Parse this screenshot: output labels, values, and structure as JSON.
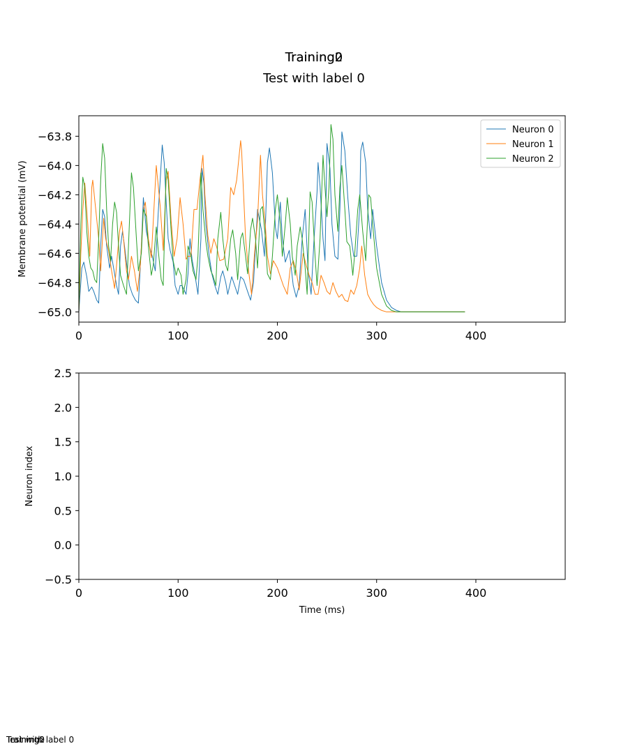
{
  "figure": {
    "title_overlap_a": "Training0",
    "title_overlap_b": "Training2",
    "subtitle": "Test with label 0",
    "footer_overlap_a": "Training0",
    "footer_overlap_b": "Training2",
    "footer_overlap_c": "Test with label 0"
  },
  "chart_data": [
    {
      "type": "line",
      "title": "",
      "xlabel": "",
      "ylabel": "Membrane potential (mV)",
      "xlim": [
        0,
        490
      ],
      "ylim": [
        -65.07,
        -63.66
      ],
      "xticks": [
        0,
        100,
        200,
        300,
        400
      ],
      "yticks": [
        -63.8,
        -64.0,
        -64.2,
        -64.4,
        -64.6,
        -64.8,
        -65.0
      ],
      "grid": false,
      "legend_position": "top-right",
      "series": [
        {
          "name": "Neuron 0",
          "color": "#1f77b4",
          "x": [
            0,
            3,
            5,
            8,
            10,
            13,
            15,
            18,
            20,
            22,
            24,
            26,
            28,
            31,
            33,
            35,
            38,
            40,
            42,
            44,
            46,
            49,
            51,
            54,
            57,
            60,
            63,
            65,
            68,
            71,
            74,
            77,
            80,
            83,
            84,
            86,
            88,
            90,
            92,
            95,
            97,
            100,
            102,
            104,
            106,
            108,
            110,
            112,
            114,
            117,
            120,
            123,
            124,
            126,
            128,
            131,
            134,
            137,
            140,
            143,
            145,
            148,
            150,
            154,
            157,
            160,
            163,
            166,
            170,
            173,
            176,
            180,
            184,
            187,
            190,
            192,
            195,
            198,
            200,
            203,
            205,
            208,
            212,
            216,
            219,
            222,
            225,
            228,
            231,
            234,
            237,
            240,
            241,
            243,
            246,
            248,
            250,
            253,
            255,
            258,
            261,
            263,
            265,
            268,
            271,
            274,
            277,
            280,
            283,
            284,
            286,
            289,
            291,
            294,
            296,
            300,
            305,
            310,
            315,
            320,
            325,
            330,
            340,
            350,
            370,
            389
          ],
          "y": [
            -65.0,
            -64.7,
            -64.66,
            -64.76,
            -64.86,
            -64.83,
            -64.86,
            -64.92,
            -64.94,
            -64.55,
            -64.3,
            -64.35,
            -64.55,
            -64.7,
            -64.62,
            -64.7,
            -64.82,
            -64.88,
            -64.55,
            -64.45,
            -64.55,
            -64.72,
            -64.82,
            -64.88,
            -64.92,
            -64.94,
            -64.55,
            -64.22,
            -64.45,
            -64.55,
            -64.62,
            -64.72,
            -64.32,
            -63.98,
            -63.86,
            -63.98,
            -64.25,
            -64.5,
            -64.58,
            -64.66,
            -64.82,
            -64.88,
            -64.82,
            -64.82,
            -64.85,
            -64.88,
            -64.74,
            -64.5,
            -64.64,
            -64.75,
            -64.88,
            -64.5,
            -64.02,
            -64.12,
            -64.4,
            -64.6,
            -64.74,
            -64.82,
            -64.88,
            -64.76,
            -64.72,
            -64.8,
            -64.88,
            -64.76,
            -64.82,
            -64.88,
            -64.76,
            -64.78,
            -64.86,
            -64.92,
            -64.8,
            -64.3,
            -64.44,
            -64.62,
            -63.98,
            -63.88,
            -64.05,
            -64.42,
            -64.5,
            -64.25,
            -64.5,
            -64.66,
            -64.58,
            -64.82,
            -64.9,
            -64.82,
            -64.5,
            -64.3,
            -64.72,
            -64.88,
            -64.5,
            -64.18,
            -63.98,
            -64.14,
            -64.5,
            -64.65,
            -63.85,
            -64.02,
            -64.4,
            -64.62,
            -64.64,
            -64.3,
            -63.77,
            -63.9,
            -64.22,
            -64.48,
            -64.62,
            -64.62,
            -64.28,
            -63.9,
            -63.84,
            -63.98,
            -64.3,
            -64.5,
            -64.3,
            -64.55,
            -64.8,
            -64.92,
            -64.97,
            -64.99,
            -65.0,
            -65.0,
            -65.0,
            -65.0,
            -65.0,
            -65.0
          ]
        },
        {
          "name": "Neuron 1",
          "color": "#ff7f0e",
          "x": [
            0,
            2,
            4,
            6,
            9,
            11,
            13,
            14,
            17,
            20,
            22,
            25,
            27,
            30,
            33,
            36,
            39,
            41,
            43,
            45,
            48,
            50,
            53,
            56,
            59,
            62,
            65,
            67,
            70,
            73,
            75,
            78,
            82,
            85,
            88,
            90,
            93,
            96,
            99,
            102,
            105,
            108,
            110,
            113,
            116,
            119,
            122,
            125,
            127,
            130,
            133,
            136,
            139,
            142,
            146,
            150,
            153,
            156,
            159,
            163,
            164,
            166,
            168,
            171,
            174,
            177,
            180,
            183,
            185,
            188,
            190,
            193,
            196,
            200,
            203,
            206,
            210,
            213,
            216,
            219,
            222,
            226,
            229,
            232,
            235,
            238,
            241,
            244,
            247,
            250,
            253,
            256,
            259,
            262,
            265,
            268,
            271,
            274,
            277,
            280,
            283,
            285,
            288,
            291,
            294,
            297,
            300,
            305,
            310,
            315,
            320,
            325,
            330,
            340,
            350,
            370,
            389
          ],
          "y": [
            -65.0,
            -64.6,
            -64.3,
            -64.12,
            -64.4,
            -64.62,
            -64.15,
            -64.1,
            -64.3,
            -64.5,
            -64.72,
            -64.36,
            -64.5,
            -64.58,
            -64.72,
            -64.84,
            -64.6,
            -64.45,
            -64.38,
            -64.5,
            -64.72,
            -64.78,
            -64.62,
            -64.72,
            -64.86,
            -64.68,
            -64.3,
            -64.25,
            -64.5,
            -64.63,
            -64.38,
            -64.0,
            -64.28,
            -64.58,
            -64.1,
            -64.04,
            -64.38,
            -64.62,
            -64.5,
            -64.22,
            -64.4,
            -64.64,
            -64.62,
            -64.62,
            -64.3,
            -64.3,
            -64.1,
            -63.93,
            -64.2,
            -64.48,
            -64.6,
            -64.5,
            -64.56,
            -64.65,
            -64.64,
            -64.5,
            -64.15,
            -64.2,
            -64.1,
            -63.83,
            -63.9,
            -64.2,
            -64.5,
            -64.72,
            -64.88,
            -64.6,
            -64.38,
            -63.93,
            -64.2,
            -64.42,
            -64.62,
            -64.74,
            -64.65,
            -64.7,
            -64.76,
            -64.82,
            -64.88,
            -64.7,
            -64.65,
            -64.72,
            -64.85,
            -64.6,
            -64.68,
            -64.75,
            -64.8,
            -64.88,
            -64.88,
            -64.75,
            -64.8,
            -64.86,
            -64.88,
            -64.8,
            -64.86,
            -64.9,
            -64.88,
            -64.92,
            -64.93,
            -64.85,
            -64.88,
            -64.82,
            -64.7,
            -64.55,
            -64.75,
            -64.88,
            -64.92,
            -64.95,
            -64.97,
            -64.99,
            -65.0,
            -65.0,
            -65.0,
            -65.0,
            -65.0,
            -65.0,
            -65.0,
            -65.0,
            -65.0
          ]
        },
        {
          "name": "Neuron 2",
          "color": "#2ca02c",
          "x": [
            0,
            2,
            4,
            6,
            8,
            10,
            12,
            14,
            16,
            18,
            20,
            22,
            24,
            26,
            28,
            30,
            32,
            34,
            36,
            38,
            40,
            42,
            45,
            48,
            50,
            53,
            55,
            58,
            60,
            63,
            65,
            68,
            70,
            73,
            75,
            78,
            80,
            83,
            85,
            88,
            90,
            93,
            95,
            98,
            100,
            103,
            105,
            108,
            110,
            113,
            115,
            118,
            120,
            123,
            125,
            128,
            130,
            133,
            135,
            138,
            140,
            143,
            145,
            148,
            150,
            153,
            155,
            158,
            160,
            163,
            165,
            168,
            170,
            173,
            175,
            178,
            180,
            183,
            185,
            188,
            190,
            193,
            195,
            198,
            200,
            203,
            205,
            208,
            210,
            213,
            215,
            218,
            220,
            223,
            225,
            228,
            230,
            233,
            235,
            238,
            240,
            243,
            246,
            248,
            250,
            252,
            254,
            256,
            258,
            261,
            263,
            265,
            268,
            270,
            273,
            276,
            278,
            281,
            283,
            286,
            289,
            292,
            294,
            296,
            300,
            305,
            310,
            315,
            320,
            325,
            330,
            340,
            350,
            370,
            389
          ],
          "y": [
            -65.0,
            -64.4,
            -64.08,
            -64.15,
            -64.45,
            -64.62,
            -64.7,
            -64.72,
            -64.78,
            -64.8,
            -64.5,
            -64.1,
            -63.85,
            -63.95,
            -64.3,
            -64.55,
            -64.65,
            -64.4,
            -64.25,
            -64.32,
            -64.55,
            -64.75,
            -64.82,
            -64.88,
            -64.55,
            -64.05,
            -64.15,
            -64.5,
            -64.72,
            -64.6,
            -64.3,
            -64.35,
            -64.55,
            -64.75,
            -64.68,
            -64.42,
            -64.58,
            -64.78,
            -64.82,
            -64.02,
            -64.1,
            -64.45,
            -64.65,
            -64.75,
            -64.7,
            -64.75,
            -64.88,
            -64.78,
            -64.55,
            -64.62,
            -64.72,
            -64.78,
            -64.62,
            -64.05,
            -64.3,
            -64.52,
            -64.62,
            -64.72,
            -64.75,
            -64.82,
            -64.5,
            -64.32,
            -64.5,
            -64.68,
            -64.72,
            -64.5,
            -64.44,
            -64.6,
            -64.78,
            -64.5,
            -64.46,
            -64.62,
            -64.74,
            -64.44,
            -64.36,
            -64.5,
            -64.7,
            -64.3,
            -64.28,
            -64.5,
            -64.74,
            -64.78,
            -64.62,
            -64.3,
            -64.2,
            -64.4,
            -64.62,
            -64.4,
            -64.22,
            -64.4,
            -64.62,
            -64.75,
            -64.55,
            -64.42,
            -64.5,
            -64.7,
            -64.88,
            -64.18,
            -64.25,
            -64.62,
            -64.82,
            -64.5,
            -63.93,
            -64.15,
            -64.35,
            -64.15,
            -63.72,
            -63.82,
            -64.2,
            -64.45,
            -64.15,
            -64.0,
            -64.3,
            -64.52,
            -64.55,
            -64.75,
            -64.6,
            -64.3,
            -64.2,
            -64.45,
            -64.65,
            -64.2,
            -64.22,
            -64.4,
            -64.7,
            -64.88,
            -64.96,
            -64.99,
            -65.0,
            -65.0,
            -65.0,
            -65.0,
            -65.0,
            -65.0,
            -65.0
          ]
        }
      ]
    },
    {
      "type": "scatter",
      "title": "",
      "xlabel": "Time (ms)",
      "ylabel": "Neuron index",
      "xlim": [
        0,
        490
      ],
      "ylim": [
        -0.5,
        2.5
      ],
      "xticks": [
        0,
        100,
        200,
        300,
        400
      ],
      "yticks": [
        2.5,
        2.0,
        1.5,
        1.0,
        0.5,
        0.0,
        -0.5
      ],
      "grid": false,
      "series": []
    }
  ]
}
